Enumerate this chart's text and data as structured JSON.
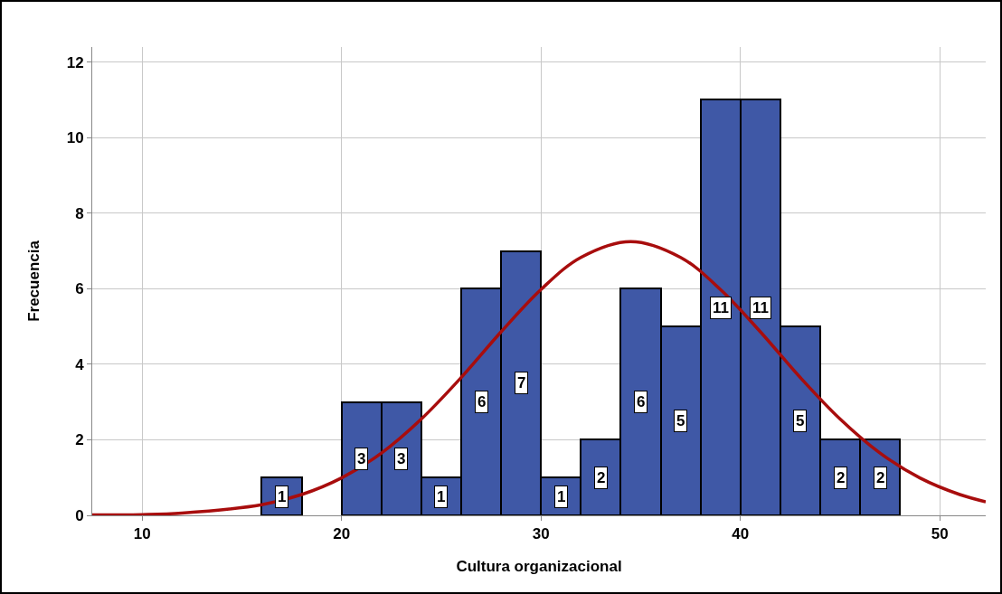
{
  "chart_data": {
    "type": "histogram",
    "xlabel": "Cultura organizacional",
    "ylabel": "Frecuencia",
    "bins": [
      16,
      18,
      20,
      22,
      24,
      26,
      28,
      30,
      32,
      34,
      36,
      38,
      40,
      42,
      44,
      46,
      48
    ],
    "values": [
      1,
      0,
      3,
      3,
      1,
      6,
      7,
      1,
      2,
      6,
      5,
      11,
      11,
      5,
      2,
      2
    ],
    "value_labels": [
      "1",
      null,
      "3",
      "3",
      "1",
      "6",
      "7",
      "1",
      "2",
      "6",
      "5",
      "11",
      "11",
      "5",
      "2",
      "2"
    ],
    "color": "#3f58a6",
    "series": [
      {
        "type": "line",
        "color": "#a80d0d",
        "x": [
          7.5,
          10,
          12,
          16,
          18,
          20,
          22,
          24,
          26,
          28,
          30,
          32,
          34.5,
          37,
          39,
          41,
          43,
          45,
          47,
          49,
          51,
          52.3
        ],
        "values": [
          0.01,
          0.02,
          0.06,
          0.28,
          0.55,
          0.99,
          1.65,
          2.55,
          3.65,
          4.86,
          5.98,
          6.83,
          7.25,
          6.83,
          5.98,
          4.86,
          3.65,
          2.55,
          1.65,
          0.99,
          0.55,
          0.36
        ]
      }
    ],
    "xlim": [
      7.5,
      52.3
    ],
    "xticks": [
      10,
      20,
      30,
      40,
      50
    ],
    "ylim": [
      0,
      12.4
    ],
    "yticks": [
      0,
      2,
      4,
      6,
      8,
      10,
      12
    ],
    "grid": true
  }
}
